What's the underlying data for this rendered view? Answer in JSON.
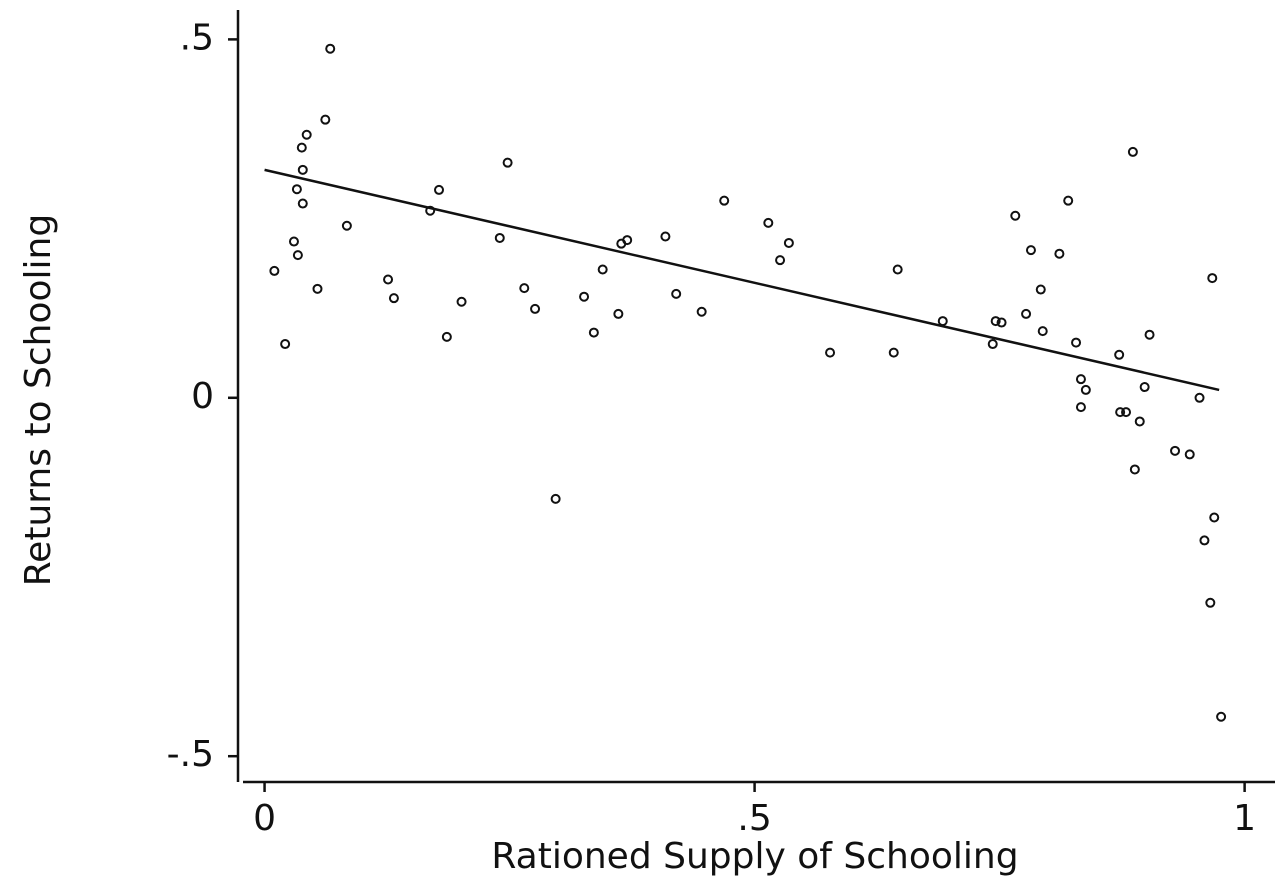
{
  "chart_data": {
    "type": "scatter",
    "x_label": "Rationed Supply of Schooling",
    "y_label": "Returns to Schooling",
    "color": "#111111",
    "xlim": [
      -0.022,
      1.031
    ],
    "ylim": [
      -0.536,
      0.541
    ],
    "xticks": [
      0,
      {
        "value": 0.5,
        "label": ".5"
      },
      1
    ],
    "yticks": [
      {
        "value": -0.5,
        "label": "-.5"
      },
      0,
      {
        "value": 0.5,
        "label": ".5"
      }
    ],
    "x": [
      0.01,
      0.021,
      0.03,
      0.034,
      0.033,
      0.038,
      0.039,
      0.039,
      0.043,
      0.054,
      0.062,
      0.067,
      0.084,
      0.126,
      0.132,
      0.169,
      0.178,
      0.186,
      0.201,
      0.24,
      0.248,
      0.265,
      0.276,
      0.297,
      0.326,
      0.336,
      0.345,
      0.361,
      0.364,
      0.37,
      0.409,
      0.42,
      0.446,
      0.469,
      0.514,
      0.526,
      0.535,
      0.577,
      0.642,
      0.646,
      0.692,
      0.743,
      0.746,
      0.752,
      0.766,
      0.777,
      0.782,
      0.792,
      0.794,
      0.811,
      0.82,
      0.828,
      0.833,
      0.833,
      0.838,
      0.872,
      0.873,
      0.879,
      0.886,
      0.888,
      0.893,
      0.898,
      0.903,
      0.929,
      0.944,
      0.954,
      0.959,
      0.965,
      0.967,
      0.969,
      0.976
    ],
    "y": [
      0.177,
      0.075,
      0.218,
      0.199,
      0.291,
      0.349,
      0.318,
      0.271,
      0.367,
      0.152,
      0.388,
      0.487,
      0.24,
      0.165,
      0.139,
      0.261,
      0.29,
      0.085,
      0.134,
      0.223,
      0.328,
      0.153,
      0.124,
      -0.141,
      0.141,
      0.091,
      0.179,
      0.117,
      0.215,
      0.22,
      0.225,
      0.145,
      0.12,
      0.275,
      0.244,
      0.192,
      0.216,
      0.063,
      0.063,
      0.179,
      0.107,
      0.075,
      0.107,
      0.105,
      0.254,
      0.117,
      0.206,
      0.151,
      0.093,
      0.201,
      0.275,
      0.077,
      0.026,
      -0.013,
      0.011,
      0.06,
      -0.02,
      -0.02,
      0.343,
      -0.1,
      -0.033,
      0.015,
      0.088,
      -0.074,
      -0.079,
      0,
      -0.199,
      -0.286,
      0.167,
      -0.167,
      -0.445
    ],
    "fit_line": {
      "x": [
        0,
        0.974
      ],
      "y": [
        0.318,
        0.011
      ]
    }
  }
}
